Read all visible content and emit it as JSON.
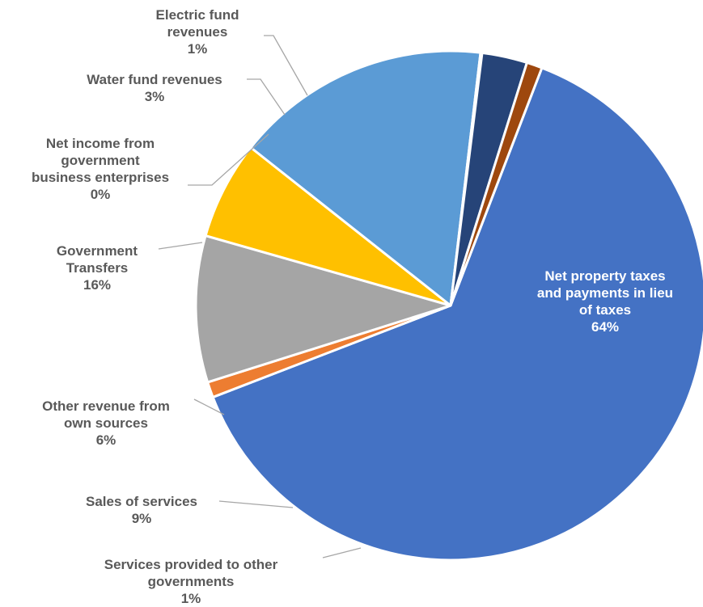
{
  "chart_data": {
    "type": "pie",
    "title": "",
    "slices": [
      {
        "label": [
          "Net property taxes",
          "and payments in lieu",
          "of taxes"
        ],
        "pct_label": "64%",
        "value": 64.0,
        "color": "#4472C4"
      },
      {
        "label": [
          "Services provided to other",
          "governments"
        ],
        "pct_label": "1%",
        "value": 1.0,
        "color": "#ED7D31"
      },
      {
        "label": [
          "Sales of services"
        ],
        "pct_label": "9%",
        "value": 9.4,
        "color": "#A5A5A5"
      },
      {
        "label": [
          "Other revenue from",
          "own sources"
        ],
        "pct_label": "6%",
        "value": 6.3,
        "color": "#FFC000"
      },
      {
        "label": [
          "Government",
          "Transfers"
        ],
        "pct_label": "16%",
        "value": 16.4,
        "color": "#5B9BD5"
      },
      {
        "label": [
          "Net income from",
          "government",
          "business enterprises"
        ],
        "pct_label": "0%",
        "value": 0.1,
        "color": "#70AD47"
      },
      {
        "label": [
          "Water fund revenues"
        ],
        "pct_label": "3%",
        "value": 2.9,
        "color": "#264478"
      },
      {
        "label": [
          "Electric fund",
          "revenues"
        ],
        "pct_label": "1%",
        "value": 1.0,
        "color": "#9E480E"
      }
    ]
  }
}
